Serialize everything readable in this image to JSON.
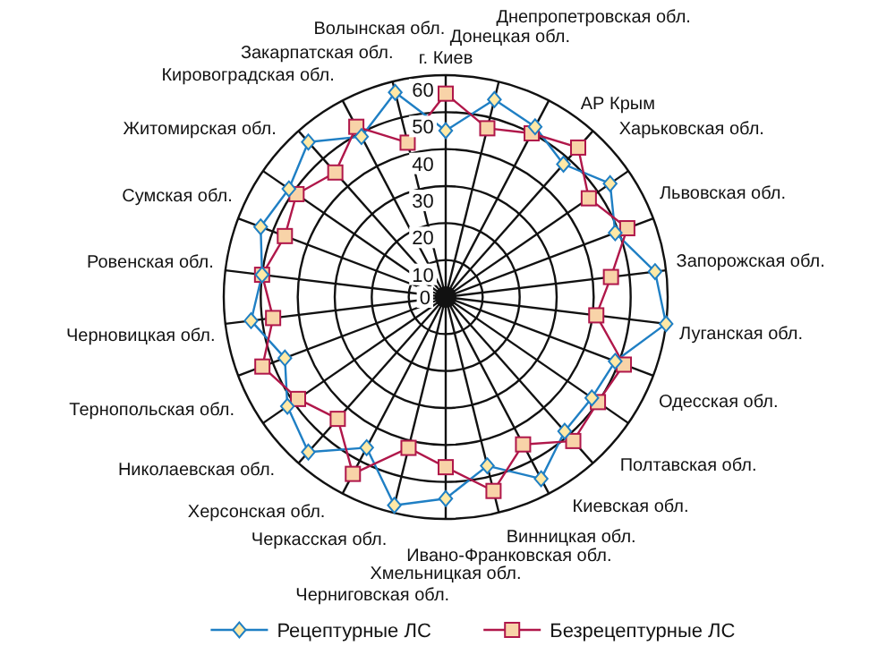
{
  "chart_data": {
    "type": "radar",
    "categories": [
      "г. Киев",
      "Донецкая обл.",
      "Днепропетровская обл.",
      "АР Крым",
      "Харьковская обл.",
      "Львовская обл.",
      "Запорожская обл.",
      "Луганская обл.",
      "Одесская обл.",
      "Полтавская обл.",
      "Киевская обл.",
      "Винницкая обл.",
      "Ивано-Франковская обл.",
      "Хмельницкая обл.",
      "Черниговская обл.",
      "Черкасская обл.",
      "Херсонская обл.",
      "Николаевская обл.",
      "Тернопольская обл.",
      "Черновицкая обл.",
      "Ровенская обл.",
      "Сумская обл.",
      "Житомирская обл.",
      "Кировоградская обл.",
      "Закарпатская обл.",
      "Волынская обл."
    ],
    "series": [
      {
        "name": "Рецептурные ЛС",
        "color": "#1f7fc4",
        "marker": "diamond",
        "values": [
          45,
          55,
          52,
          48,
          54,
          49,
          57,
          60,
          49,
          48,
          48.5,
          55.5,
          47,
          54.5,
          58,
          46,
          56,
          52,
          46.5,
          53,
          50,
          53.5,
          51.5,
          56,
          49,
          57
        ]
      },
      {
        "name": "Безрецептурные ЛС",
        "color": "#b0174a",
        "marker": "square",
        "values": [
          55,
          47,
          50,
          54,
          47,
          52.5,
          45,
          41,
          51.5,
          50,
          52,
          45,
          54,
          46,
          42,
          54,
          44,
          48.5,
          53,
          47,
          50,
          46.5,
          49,
          45,
          52,
          43
        ]
      }
    ],
    "ylim": [
      0,
      60
    ],
    "yticks": [
      0,
      10,
      20,
      30,
      40,
      50,
      60
    ],
    "grid": true,
    "legend": "bottom"
  }
}
